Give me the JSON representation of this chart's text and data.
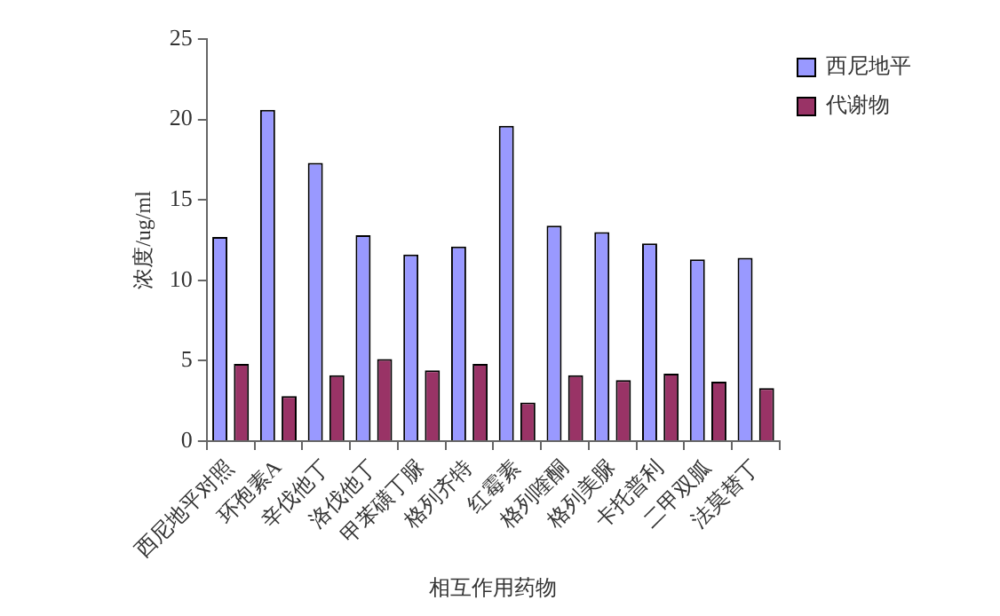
{
  "chart_data": {
    "type": "bar",
    "xlabel": "相互作用药物",
    "ylabel": "浓度/ug/ml",
    "categories": [
      "西尼地平对照",
      "环孢素A",
      "辛伐他丁",
      "洛伐他丁",
      "甲苯磺丁脲",
      "格列齐特",
      "红霉素",
      "格列喹酮",
      "格列美脲",
      "卡托普利",
      "二甲双胍",
      "法莫替丁"
    ],
    "series": [
      {
        "name": "西尼地平",
        "color": "#9999ff",
        "values": [
          12.7,
          20.6,
          17.3,
          12.8,
          11.6,
          12.1,
          19.6,
          13.4,
          13.0,
          12.3,
          11.3,
          11.4
        ]
      },
      {
        "name": "代谢物",
        "color": "#993366",
        "values": [
          4.8,
          2.8,
          4.1,
          5.1,
          4.4,
          4.8,
          2.4,
          4.1,
          3.8,
          4.2,
          3.7,
          3.3
        ]
      }
    ],
    "ylim": [
      0,
      25
    ],
    "yticks": [
      0,
      5,
      10,
      15,
      20,
      25
    ],
    "grid": false,
    "legend": "top right"
  }
}
